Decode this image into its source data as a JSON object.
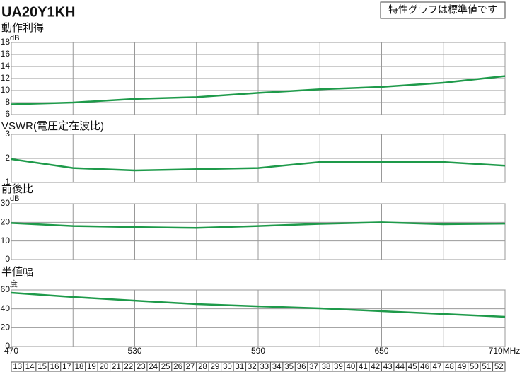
{
  "title": "UA20Y1KH",
  "note": "特性グラフは標準値です",
  "chart_data": [
    {
      "type": "line",
      "title": "動作利得",
      "unit": "dB",
      "x": [
        470,
        500,
        530,
        560,
        590,
        620,
        650,
        680,
        710
      ],
      "xlim": [
        470,
        710
      ],
      "xgrid": [
        470,
        500,
        530,
        560,
        590,
        620,
        650,
        680,
        710
      ],
      "series": [
        {
          "color": "#1e9a4a",
          "values": [
            7.7,
            8.0,
            8.6,
            8.9,
            9.6,
            10.2,
            10.6,
            11.3,
            12.4
          ]
        }
      ],
      "ylim": [
        6,
        18
      ],
      "yticks": [
        6,
        8,
        10,
        12,
        14,
        16,
        18
      ]
    },
    {
      "type": "line",
      "title": "VSWR(電圧定在波比)",
      "x": [
        470,
        500,
        530,
        560,
        590,
        620,
        650,
        680,
        710
      ],
      "xlim": [
        470,
        710
      ],
      "xgrid": [
        470,
        500,
        530,
        560,
        590,
        620,
        650,
        680,
        710
      ],
      "series": [
        {
          "color": "#1e9a4a",
          "values": [
            1.97,
            1.6,
            1.5,
            1.55,
            1.6,
            1.85,
            1.85,
            1.85,
            1.7
          ]
        }
      ],
      "ylim": [
        1,
        3
      ],
      "yticks": [
        1,
        2,
        3
      ]
    },
    {
      "type": "line",
      "title": "前後比",
      "unit": "dB",
      "x": [
        470,
        500,
        530,
        560,
        590,
        620,
        650,
        680,
        710
      ],
      "xlim": [
        470,
        710
      ],
      "xgrid": [
        470,
        500,
        530,
        560,
        590,
        620,
        650,
        680,
        710
      ],
      "series": [
        {
          "color": "#1e9a4a",
          "values": [
            19.6,
            18,
            17.4,
            17,
            18,
            19.2,
            20,
            19,
            19.3
          ]
        }
      ],
      "ylim": [
        0,
        30
      ],
      "yticks": [
        0,
        10,
        20,
        30
      ]
    },
    {
      "type": "line",
      "title": "半値幅",
      "unit": "度",
      "x": [
        470,
        500,
        530,
        560,
        590,
        620,
        650,
        680,
        710
      ],
      "xlim": [
        470,
        710
      ],
      "xgrid": [
        470,
        500,
        530,
        560,
        590,
        620,
        650,
        680,
        710
      ],
      "xticks": [
        470,
        530,
        590,
        650,
        {
          "value": 710,
          "label": "710MHz"
        }
      ],
      "series": [
        {
          "color": "#1e9a4a",
          "values": [
            57,
            52.5,
            48.7,
            45,
            42.7,
            40.5,
            37.5,
            34.5,
            31.5
          ]
        }
      ],
      "ylim": [
        0,
        60
      ],
      "yticks": [
        0,
        20,
        40,
        60
      ]
    }
  ],
  "channels": [
    13,
    14,
    15,
    16,
    17,
    18,
    19,
    20,
    21,
    22,
    23,
    24,
    25,
    26,
    27,
    28,
    29,
    30,
    31,
    32,
    33,
    34,
    35,
    36,
    37,
    38,
    39,
    40,
    41,
    42,
    43,
    44,
    45,
    46,
    47,
    48,
    49,
    50,
    51,
    52
  ]
}
